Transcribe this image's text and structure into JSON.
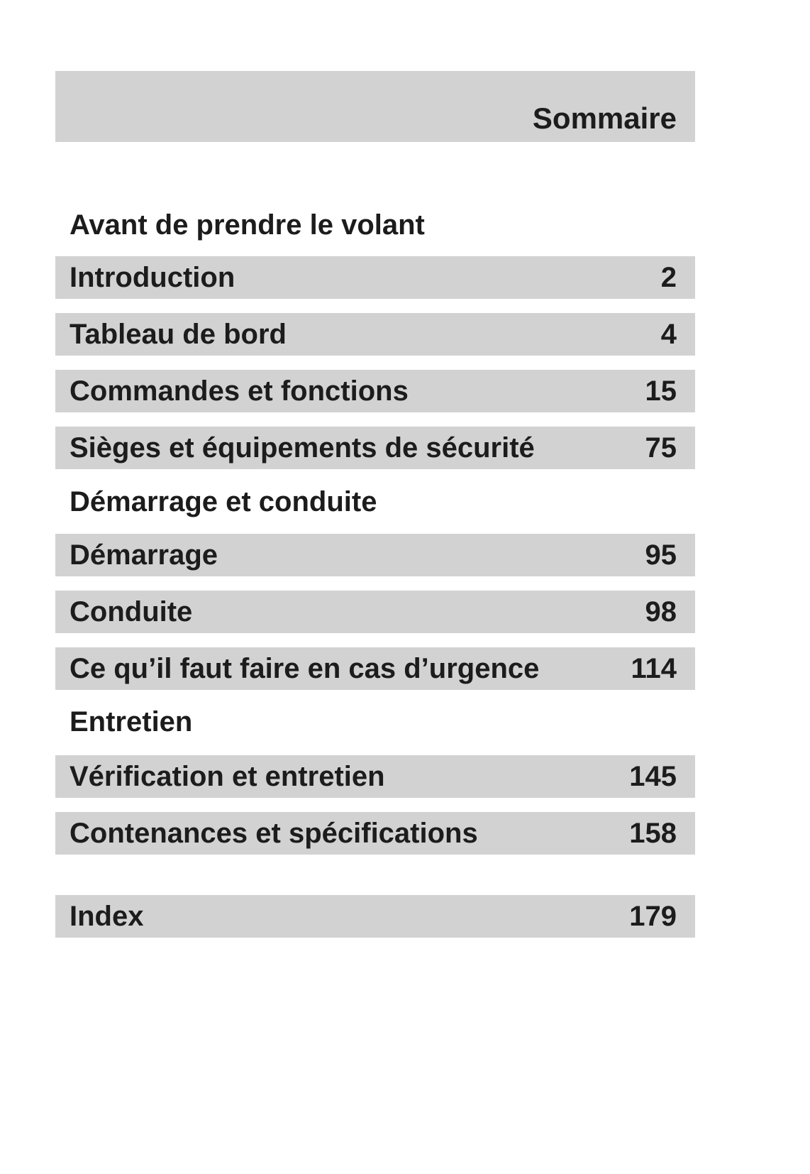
{
  "header": {
    "title": "Sommaire"
  },
  "toc": {
    "groups": [
      {
        "heading": "Avant de prendre le volant",
        "items": [
          {
            "label": "Introduction",
            "page": "2"
          },
          {
            "label": "Tableau de bord",
            "page": "4"
          },
          {
            "label": "Commandes et fonctions",
            "page": "15"
          },
          {
            "label": "Sièges et équipements de sécurité",
            "page": "75"
          }
        ]
      },
      {
        "heading": "Démarrage et conduite",
        "items": [
          {
            "label": "Démarrage",
            "page": "95"
          },
          {
            "label": "Conduite",
            "page": "98"
          },
          {
            "label": "Ce qu’il faut faire en cas d’urgence",
            "page": "114"
          }
        ]
      },
      {
        "heading": "Entretien",
        "items": [
          {
            "label": "Vérification et entretien",
            "page": "145"
          },
          {
            "label": "Contenances et spécifications",
            "page": "158"
          }
        ]
      },
      {
        "heading": "",
        "items": [
          {
            "label": "Index",
            "page": "179"
          }
        ]
      }
    ]
  },
  "colors": {
    "bar_background": "#d2d2d2",
    "text": "#1c1c1c",
    "page_background": "#ffffff"
  }
}
